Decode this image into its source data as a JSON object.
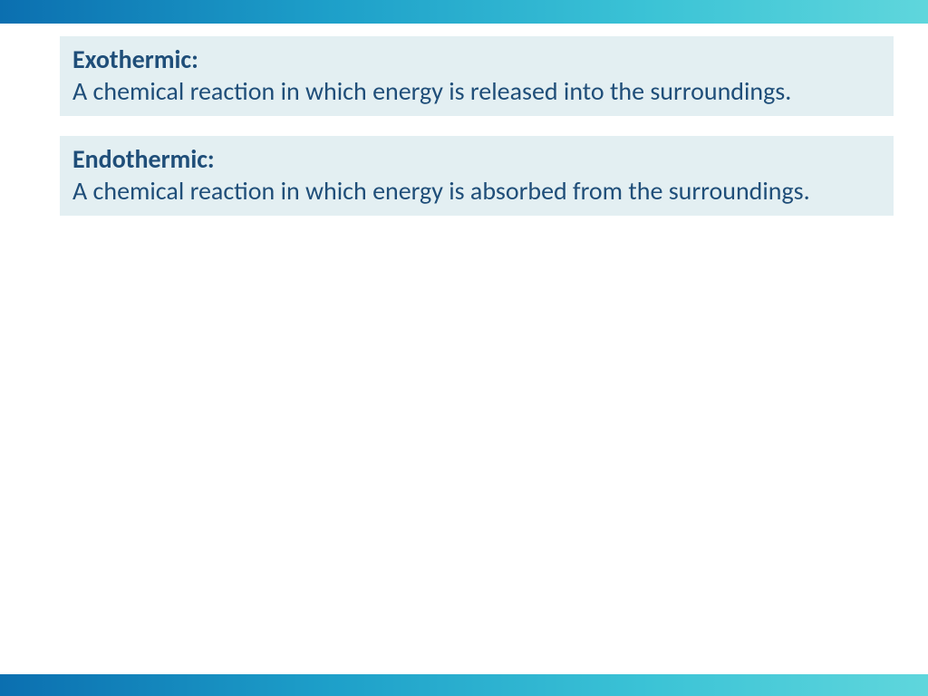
{
  "layout": {
    "bar_gradient_start": "#0b6fb0",
    "bar_gradient_end": "#5fd6dc",
    "box_background": "#e3eff2",
    "text_color": "#1f4e79",
    "font_family": "Calibri",
    "term_fontsize": 28,
    "definition_fontsize": 28
  },
  "definitions": [
    {
      "term": "Exothermic:",
      "text": "A chemical reaction in which energy is released into the surroundings."
    },
    {
      "term": "Endothermic:",
      "text": "A chemical reaction in which energy is absorbed from the surroundings."
    }
  ]
}
